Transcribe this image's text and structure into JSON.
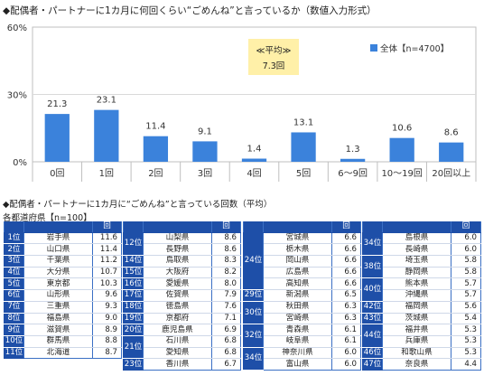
{
  "title_chart": "◆配偶者・パートナーに1カ月に何回くらい“ごめんね”と言っているか（数値入力形式）",
  "chart_data": {
    "type": "bar",
    "categories": [
      "0回",
      "1回",
      "2回",
      "3回",
      "4回",
      "5回",
      "6～9回",
      "10～19回",
      "20回以上"
    ],
    "series": [
      {
        "name": "全体【n=4700】",
        "values": [
          21.3,
          23.1,
          11.4,
          9.1,
          1.4,
          13.1,
          1.3,
          10.6,
          8.6
        ],
        "color": "#3b82db"
      }
    ],
    "value_labels": [
      "21.3",
      "23.1",
      "11.4",
      "9.1",
      "1.4",
      "13.1",
      "1.3",
      "10.6",
      "8.6"
    ],
    "ylim": [
      0,
      60
    ],
    "yticks": [
      "0%",
      "30%",
      "60%"
    ],
    "grid": true,
    "legend": "top-right",
    "annotation": {
      "label": "≪平均≫",
      "value": "7.3回",
      "color": "#fff0a8"
    }
  },
  "title_table": "◆配偶者・パートナーに1カ月に“ごめんね”と言っている回数（平均）",
  "table_subtitle": "各都道府県【n=100】",
  "table_unit": "回",
  "table_columns": [
    [
      {
        "rank": "1位",
        "pref": "岩手県",
        "val": "11.6"
      },
      {
        "rank": "2位",
        "pref": "山口県",
        "val": "11.4"
      },
      {
        "rank": "3位",
        "pref": "千葉県",
        "val": "11.2"
      },
      {
        "rank": "4位",
        "pref": "大分県",
        "val": "10.7"
      },
      {
        "rank": "5位",
        "pref": "東京都",
        "val": "10.3"
      },
      {
        "rank": "6位",
        "pref": "山形県",
        "val": "9.6"
      },
      {
        "rank": "7位",
        "pref": "三重県",
        "val": "9.3"
      },
      {
        "rank": "8位",
        "pref": "福島県",
        "val": "9.0"
      },
      {
        "rank": "9位",
        "pref": "滋賀県",
        "val": "8.9"
      },
      {
        "rank": "10位",
        "pref": "群馬県",
        "val": "8.8"
      },
      {
        "rank": "11位",
        "pref": "北海道",
        "val": "8.7"
      }
    ],
    [
      {
        "rank": "12位",
        "pref": "山梨県",
        "val": "8.6",
        "span": 2
      },
      {
        "pref": "長野県",
        "val": "8.6"
      },
      {
        "rank": "14位",
        "pref": "鳥取県",
        "val": "8.3"
      },
      {
        "rank": "15位",
        "pref": "大阪府",
        "val": "8.2"
      },
      {
        "rank": "16位",
        "pref": "愛媛県",
        "val": "8.0"
      },
      {
        "rank": "17位",
        "pref": "佐賀県",
        "val": "7.9"
      },
      {
        "rank": "18位",
        "pref": "徳島県",
        "val": "7.6"
      },
      {
        "rank": "19位",
        "pref": "京都府",
        "val": "7.1"
      },
      {
        "rank": "20位",
        "pref": "鹿児島県",
        "val": "6.9"
      },
      {
        "rank": "21位",
        "pref": "石川県",
        "val": "6.8",
        "span": 2
      },
      {
        "pref": "愛知県",
        "val": "6.8"
      },
      {
        "rank": "23位",
        "pref": "香川県",
        "val": "6.7"
      }
    ],
    [
      {
        "rank": "24位",
        "pref": "宮城県",
        "val": "6.6",
        "span": 5
      },
      {
        "pref": "栃木県",
        "val": "6.6"
      },
      {
        "pref": "岡山県",
        "val": "6.6"
      },
      {
        "pref": "広島県",
        "val": "6.6"
      },
      {
        "pref": "高知県",
        "val": "6.6"
      },
      {
        "rank": "29位",
        "pref": "新潟県",
        "val": "6.5"
      },
      {
        "rank": "30位",
        "pref": "秋田県",
        "val": "6.3",
        "span": 2
      },
      {
        "pref": "宮崎県",
        "val": "6.3"
      },
      {
        "rank": "32位",
        "pref": "青森県",
        "val": "6.1",
        "span": 2
      },
      {
        "pref": "岐阜県",
        "val": "6.1"
      },
      {
        "rank": "34位",
        "pref": "神奈川県",
        "val": "6.0",
        "span": 2
      },
      {
        "pref": "富山県",
        "val": "6.0"
      }
    ],
    [
      {
        "rank": "34位",
        "pref": "島根県",
        "val": "6.0",
        "span": 2
      },
      {
        "pref": "長崎県",
        "val": "6.0"
      },
      {
        "rank": "38位",
        "pref": "埼玉県",
        "val": "5.8",
        "span": 2
      },
      {
        "pref": "静岡県",
        "val": "5.8"
      },
      {
        "rank": "40位",
        "pref": "熊本県",
        "val": "5.7",
        "span": 2
      },
      {
        "pref": "沖縄県",
        "val": "5.7"
      },
      {
        "rank": "42位",
        "pref": "福岡県",
        "val": "5.6"
      },
      {
        "rank": "43位",
        "pref": "茨城県",
        "val": "5.4"
      },
      {
        "rank": "44位",
        "pref": "福井県",
        "val": "5.3",
        "span": 2
      },
      {
        "pref": "兵庫県",
        "val": "5.3"
      },
      {
        "rank": "46位",
        "pref": "和歌山県",
        "val": "5.3"
      },
      {
        "rank": "47位",
        "pref": "奈良県",
        "val": "4.4"
      }
    ]
  ]
}
